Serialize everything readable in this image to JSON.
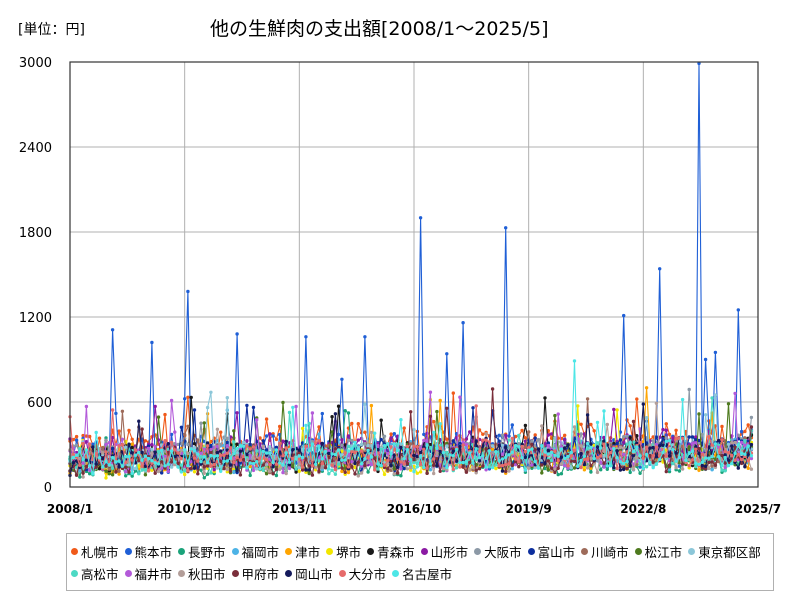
{
  "unit_label": "[単位：円]",
  "chart_data": {
    "type": "line",
    "title": "他の生鮮肉の支出額[2008/1～2025/5]",
    "xlabel": "",
    "ylabel": "",
    "ylim": [
      0,
      3000
    ],
    "yticks": [
      0,
      600,
      1200,
      1800,
      2400,
      3000
    ],
    "xlim": [
      "2008/1",
      "2025/7"
    ],
    "xticks": [
      "2008/1",
      "2010/12",
      "2013/11",
      "2016/10",
      "2019/9",
      "2022/8",
      "2025/7"
    ],
    "grid": true,
    "legend_position": "bottom",
    "series": [
      {
        "name": "札幌市",
        "color": "#f05a1a",
        "base": 290,
        "amp": 110,
        "trend": 0.3
      },
      {
        "name": "熊本市",
        "color": "#1f5fd6",
        "base": 230,
        "amp": 120,
        "trend": 0.3,
        "spikes": [
          [
            "2009/2",
            1110
          ],
          [
            "2010/2",
            1020
          ],
          [
            "2011/1",
            1380
          ],
          [
            "2012/4",
            1080
          ],
          [
            "2014/1",
            1060
          ],
          [
            "2015/7",
            1060
          ],
          [
            "2016/12",
            1900
          ],
          [
            "2017/8",
            940
          ],
          [
            "2018/1",
            1160
          ],
          [
            "2019/2",
            1830
          ],
          [
            "2022/2",
            1330
          ],
          [
            "2022/2",
            1210
          ],
          [
            "2023/1",
            1540
          ],
          [
            "2024/1",
            2990
          ],
          [
            "2024/3",
            900
          ],
          [
            "2024/6",
            950
          ],
          [
            "2025/1",
            1250
          ]
        ]
      },
      {
        "name": "長野市",
        "color": "#1aa37a",
        "base": 150,
        "amp": 70,
        "trend": 0.2
      },
      {
        "name": "福岡市",
        "color": "#4db3e6",
        "base": 200,
        "amp": 90,
        "trend": 0.2
      },
      {
        "name": "津市",
        "color": "#ffa500",
        "base": 190,
        "amp": 90,
        "trend": 0.2
      },
      {
        "name": "堺市",
        "color": "#f2e600",
        "base": 180,
        "amp": 90,
        "trend": 0.2
      },
      {
        "name": "青森市",
        "color": "#1a1a1a",
        "base": 200,
        "amp": 90,
        "trend": 0.3
      },
      {
        "name": "山形市",
        "color": "#8b1aa3",
        "base": 230,
        "amp": 100,
        "trend": 0.3
      },
      {
        "name": "大阪市",
        "color": "#8c99a6",
        "base": 220,
        "amp": 90,
        "trend": 0.3
      },
      {
        "name": "富山市",
        "color": "#0d2f9e",
        "base": 200,
        "amp": 90,
        "trend": 0.3
      },
      {
        "name": "川崎市",
        "color": "#9e6b5a",
        "base": 190,
        "amp": 80,
        "trend": 0.2
      },
      {
        "name": "松江市",
        "color": "#4e7a1e",
        "base": 180,
        "amp": 80,
        "trend": 0.2
      },
      {
        "name": "東京都区部",
        "color": "#8cc7d9",
        "base": 210,
        "amp": 80,
        "trend": 0.2
      },
      {
        "name": "高松市",
        "color": "#4dd9c4",
        "base": 190,
        "amp": 90,
        "trend": 0.2
      },
      {
        "name": "福井市",
        "color": "#b35ad9",
        "base": 200,
        "amp": 90,
        "trend": 0.2
      },
      {
        "name": "秋田市",
        "color": "#b39e99",
        "base": 170,
        "amp": 80,
        "trend": 0.2
      },
      {
        "name": "甲府市",
        "color": "#7a2e3a",
        "base": 170,
        "amp": 80,
        "trend": 0.2
      },
      {
        "name": "岡山市",
        "color": "#141a5c",
        "base": 200,
        "amp": 90,
        "trend": 0.2
      },
      {
        "name": "大分市",
        "color": "#e66b6b",
        "base": 210,
        "amp": 90,
        "trend": 0.2
      },
      {
        "name": "名古屋市",
        "color": "#4de6e6",
        "base": 190,
        "amp": 80,
        "trend": 0.2,
        "spikes": [
          [
            "2020/11",
            890
          ]
        ]
      }
    ]
  }
}
